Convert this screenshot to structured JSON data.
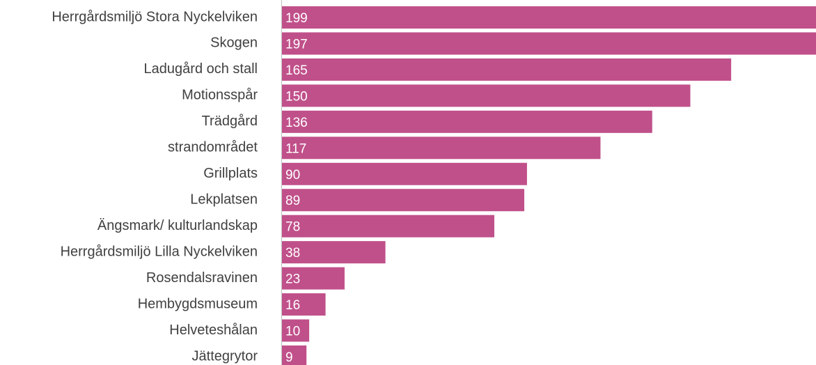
{
  "chart_data": {
    "type": "bar",
    "orientation": "horizontal",
    "categories": [
      "Herrgårdsmiljö Stora Nyckelviken",
      "Skogen",
      "Ladugård och stall",
      "Motionsspår",
      "Trädgård",
      "strandområdet",
      "Grillplats",
      "Lekplatsen",
      "Ängsmark/ kulturlandskap",
      "Herrgårdsmiljö Lilla Nyckelviken",
      "Rosendalsravinen",
      "Hembygdsmuseum",
      "Helveteshålan",
      "Jättegrytor"
    ],
    "values": [
      199,
      197,
      165,
      150,
      136,
      117,
      90,
      89,
      78,
      38,
      23,
      16,
      10,
      9
    ],
    "color": "#c0508a"
  }
}
